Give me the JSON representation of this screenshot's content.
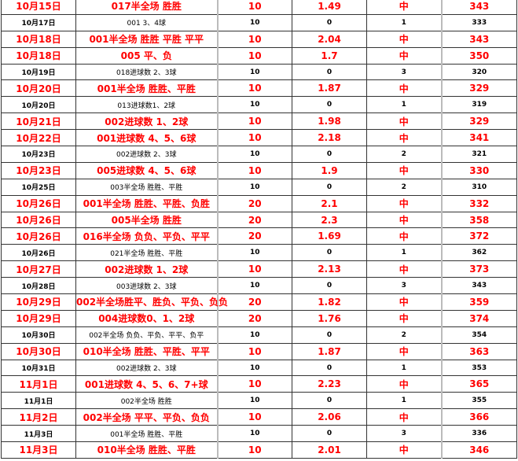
{
  "accent_color": "#ff0000",
  "rows": [
    {
      "date": "10月15日",
      "pick": "017半全场 胜胜",
      "stake": "10",
      "odds": "1.49",
      "result": "中",
      "total": "343",
      "hit": true
    },
    {
      "date": "10月17日",
      "pick": "001 3、4球",
      "stake": "10",
      "odds": "0",
      "result": "1",
      "total": "333",
      "hit": false
    },
    {
      "date": "10月18日",
      "pick": "001半全场 胜胜 平胜 平平",
      "stake": "10",
      "odds": "2.04",
      "result": "中",
      "total": "343",
      "hit": true
    },
    {
      "date": "10月18日",
      "pick": "005 平、负",
      "stake": "10",
      "odds": "1.7",
      "result": "中",
      "total": "350",
      "hit": true
    },
    {
      "date": "10月19日",
      "pick": "018进球数 2、3球",
      "stake": "10",
      "odds": "0",
      "result": "3",
      "total": "320",
      "hit": false
    },
    {
      "date": "10月20日",
      "pick": "001半全场 胜胜、平胜",
      "stake": "10",
      "odds": "1.87",
      "result": "中",
      "total": "329",
      "hit": true
    },
    {
      "date": "10月20日",
      "pick": "013进球数1、2球",
      "stake": "10",
      "odds": "0",
      "result": "1",
      "total": "319",
      "hit": false
    },
    {
      "date": "10月21日",
      "pick": "002进球数 1、2球",
      "stake": "10",
      "odds": "1.98",
      "result": "中",
      "total": "329",
      "hit": true
    },
    {
      "date": "10月22日",
      "pick": "001进球数 4、5、6球",
      "stake": "10",
      "odds": "2.18",
      "result": "中",
      "total": "341",
      "hit": true
    },
    {
      "date": "10月23日",
      "pick": "002进球数 2、3球",
      "stake": "10",
      "odds": "0",
      "result": "2",
      "total": "321",
      "hit": false
    },
    {
      "date": "10月23日",
      "pick": "005进球数 4、5、6球",
      "stake": "10",
      "odds": "1.9",
      "result": "中",
      "total": "330",
      "hit": true
    },
    {
      "date": "10月25日",
      "pick": "003半全场 胜胜、平胜",
      "stake": "10",
      "odds": "0",
      "result": "2",
      "total": "310",
      "hit": false
    },
    {
      "date": "10月26日",
      "pick": "001半全场 胜胜、平胜、负胜",
      "stake": "20",
      "odds": "2.1",
      "result": "中",
      "total": "332",
      "hit": true
    },
    {
      "date": "10月26日",
      "pick": "005半全场 胜胜",
      "stake": "20",
      "odds": "2.3",
      "result": "中",
      "total": "358",
      "hit": true
    },
    {
      "date": "10月26日",
      "pick": "016半全场 负负、平负、平平",
      "stake": "20",
      "odds": "1.69",
      "result": "中",
      "total": "372",
      "hit": true
    },
    {
      "date": "10月26日",
      "pick": "021半全场 胜胜、平胜",
      "stake": "10",
      "odds": "0",
      "result": "1",
      "total": "362",
      "hit": false
    },
    {
      "date": "10月27日",
      "pick": "002进球数 1、2球",
      "stake": "10",
      "odds": "2.13",
      "result": "中",
      "total": "373",
      "hit": true
    },
    {
      "date": "10月28日",
      "pick": "003进球数 2、3球",
      "stake": "10",
      "odds": "0",
      "result": "3",
      "total": "343",
      "hit": false
    },
    {
      "date": "10月29日",
      "pick": "002半全场胜平、胜负、平负、负负",
      "stake": "20",
      "odds": "1.82",
      "result": "中",
      "total": "359",
      "hit": true
    },
    {
      "date": "10月29日",
      "pick": "004进球数0、1、2球",
      "stake": "20",
      "odds": "1.76",
      "result": "中",
      "total": "374",
      "hit": true
    },
    {
      "date": "10月30日",
      "pick": "002半全场 负负、平负、平平、负平",
      "stake": "10",
      "odds": "0",
      "result": "2",
      "total": "354",
      "hit": false
    },
    {
      "date": "10月30日",
      "pick": "010半全场 胜胜、平胜、平平",
      "stake": "10",
      "odds": "1.87",
      "result": "中",
      "total": "363",
      "hit": true
    },
    {
      "date": "10月31日",
      "pick": "002进球数 2、3球",
      "stake": "10",
      "odds": "0",
      "result": "1",
      "total": "353",
      "hit": false
    },
    {
      "date": "11月1日",
      "pick": "001进球数 4、5、6、7+球",
      "stake": "10",
      "odds": "2.23",
      "result": "中",
      "total": "365",
      "hit": true
    },
    {
      "date": "11月1日",
      "pick": "002半全场 胜胜",
      "stake": "10",
      "odds": "0",
      "result": "1",
      "total": "355",
      "hit": false
    },
    {
      "date": "11月2日",
      "pick": "002半全场 平平、平负、负负",
      "stake": "10",
      "odds": "2.06",
      "result": "中",
      "total": "366",
      "hit": true
    },
    {
      "date": "11月3日",
      "pick": "001半全场 胜胜、平胜",
      "stake": "10",
      "odds": "0",
      "result": "3",
      "total": "336",
      "hit": false
    },
    {
      "date": "11月3日",
      "pick": "010半全场 胜胜、平胜",
      "stake": "10",
      "odds": "2.01",
      "result": "中",
      "total": "346",
      "hit": true
    }
  ]
}
